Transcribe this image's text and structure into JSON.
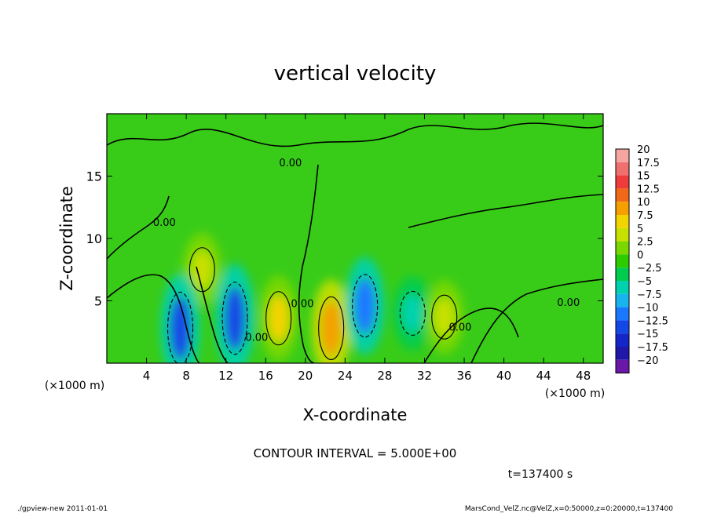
{
  "chart_data": {
    "type": "heatmap",
    "title": "vertical velocity",
    "xlabel": "X-coordinate",
    "ylabel": "Z-coordinate",
    "x_unit_left": "(×1000 m)",
    "x_unit_right": "(×1000 m)",
    "xlim": [
      0,
      50
    ],
    "ylim": [
      0,
      20
    ],
    "x_ticks": [
      4,
      8,
      12,
      16,
      20,
      24,
      28,
      32,
      36,
      40,
      44,
      48
    ],
    "y_ticks": [
      5,
      10,
      15
    ],
    "contour_labels": [
      {
        "text": "0.00",
        "x": 18.5,
        "z": 15.8
      },
      {
        "text": "0.00",
        "x": 5.8,
        "z": 11.0
      },
      {
        "text": "0.00",
        "x": 19.7,
        "z": 4.5
      },
      {
        "text": "0.00",
        "x": 15.1,
        "z": 1.8
      },
      {
        "text": "0.00",
        "x": 35.6,
        "z": 2.6
      },
      {
        "text": "0.00",
        "x": 46.5,
        "z": 4.6
      }
    ],
    "features": [
      {
        "kind": "updraft",
        "x": 9.6,
        "z": 7.5,
        "peak": 5
      },
      {
        "kind": "downdraft",
        "x": 7.4,
        "z": 2.8,
        "peak": -12.5
      },
      {
        "kind": "downdraft",
        "x": 12.9,
        "z": 3.6,
        "peak": -12.5
      },
      {
        "kind": "updraft",
        "x": 17.3,
        "z": 3.6,
        "peak": 7.5
      },
      {
        "kind": "updraft",
        "x": 22.6,
        "z": 2.8,
        "peak": 10
      },
      {
        "kind": "downdraft",
        "x": 26.0,
        "z": 4.6,
        "peak": -10
      },
      {
        "kind": "downdraft",
        "x": 30.8,
        "z": 4.0,
        "peak": -5
      },
      {
        "kind": "updraft",
        "x": 34.0,
        "z": 3.7,
        "peak": 5
      }
    ],
    "colorbar": {
      "labels": [
        "20",
        "17.5",
        "15",
        "12.5",
        "10",
        "7.5",
        "5",
        "2.5",
        "0",
        "−2.5",
        "−5",
        "−7.5",
        "−10",
        "−12.5",
        "−15",
        "−17.5",
        "−20"
      ],
      "colors": [
        "#f5a6a0",
        "#f07070",
        "#ee3c3c",
        "#f06818",
        "#f5a000",
        "#f2d400",
        "#c8e000",
        "#7ad800",
        "#2ccc00",
        "#00cc50",
        "#00d2b0",
        "#18b4ee",
        "#1a78ff",
        "#1448e6",
        "#1426c8",
        "#2018a8",
        "#6a18a8"
      ]
    },
    "contour_interval_text": "CONTOUR INTERVAL = 5.000E+00",
    "time_text": "t=137400  s"
  },
  "footer": {
    "left": "./gpview-new   2011-01-01",
    "right": "MarsCond_VelZ.nc@VelZ,x=0:50000,z=0:20000,t=137400"
  }
}
